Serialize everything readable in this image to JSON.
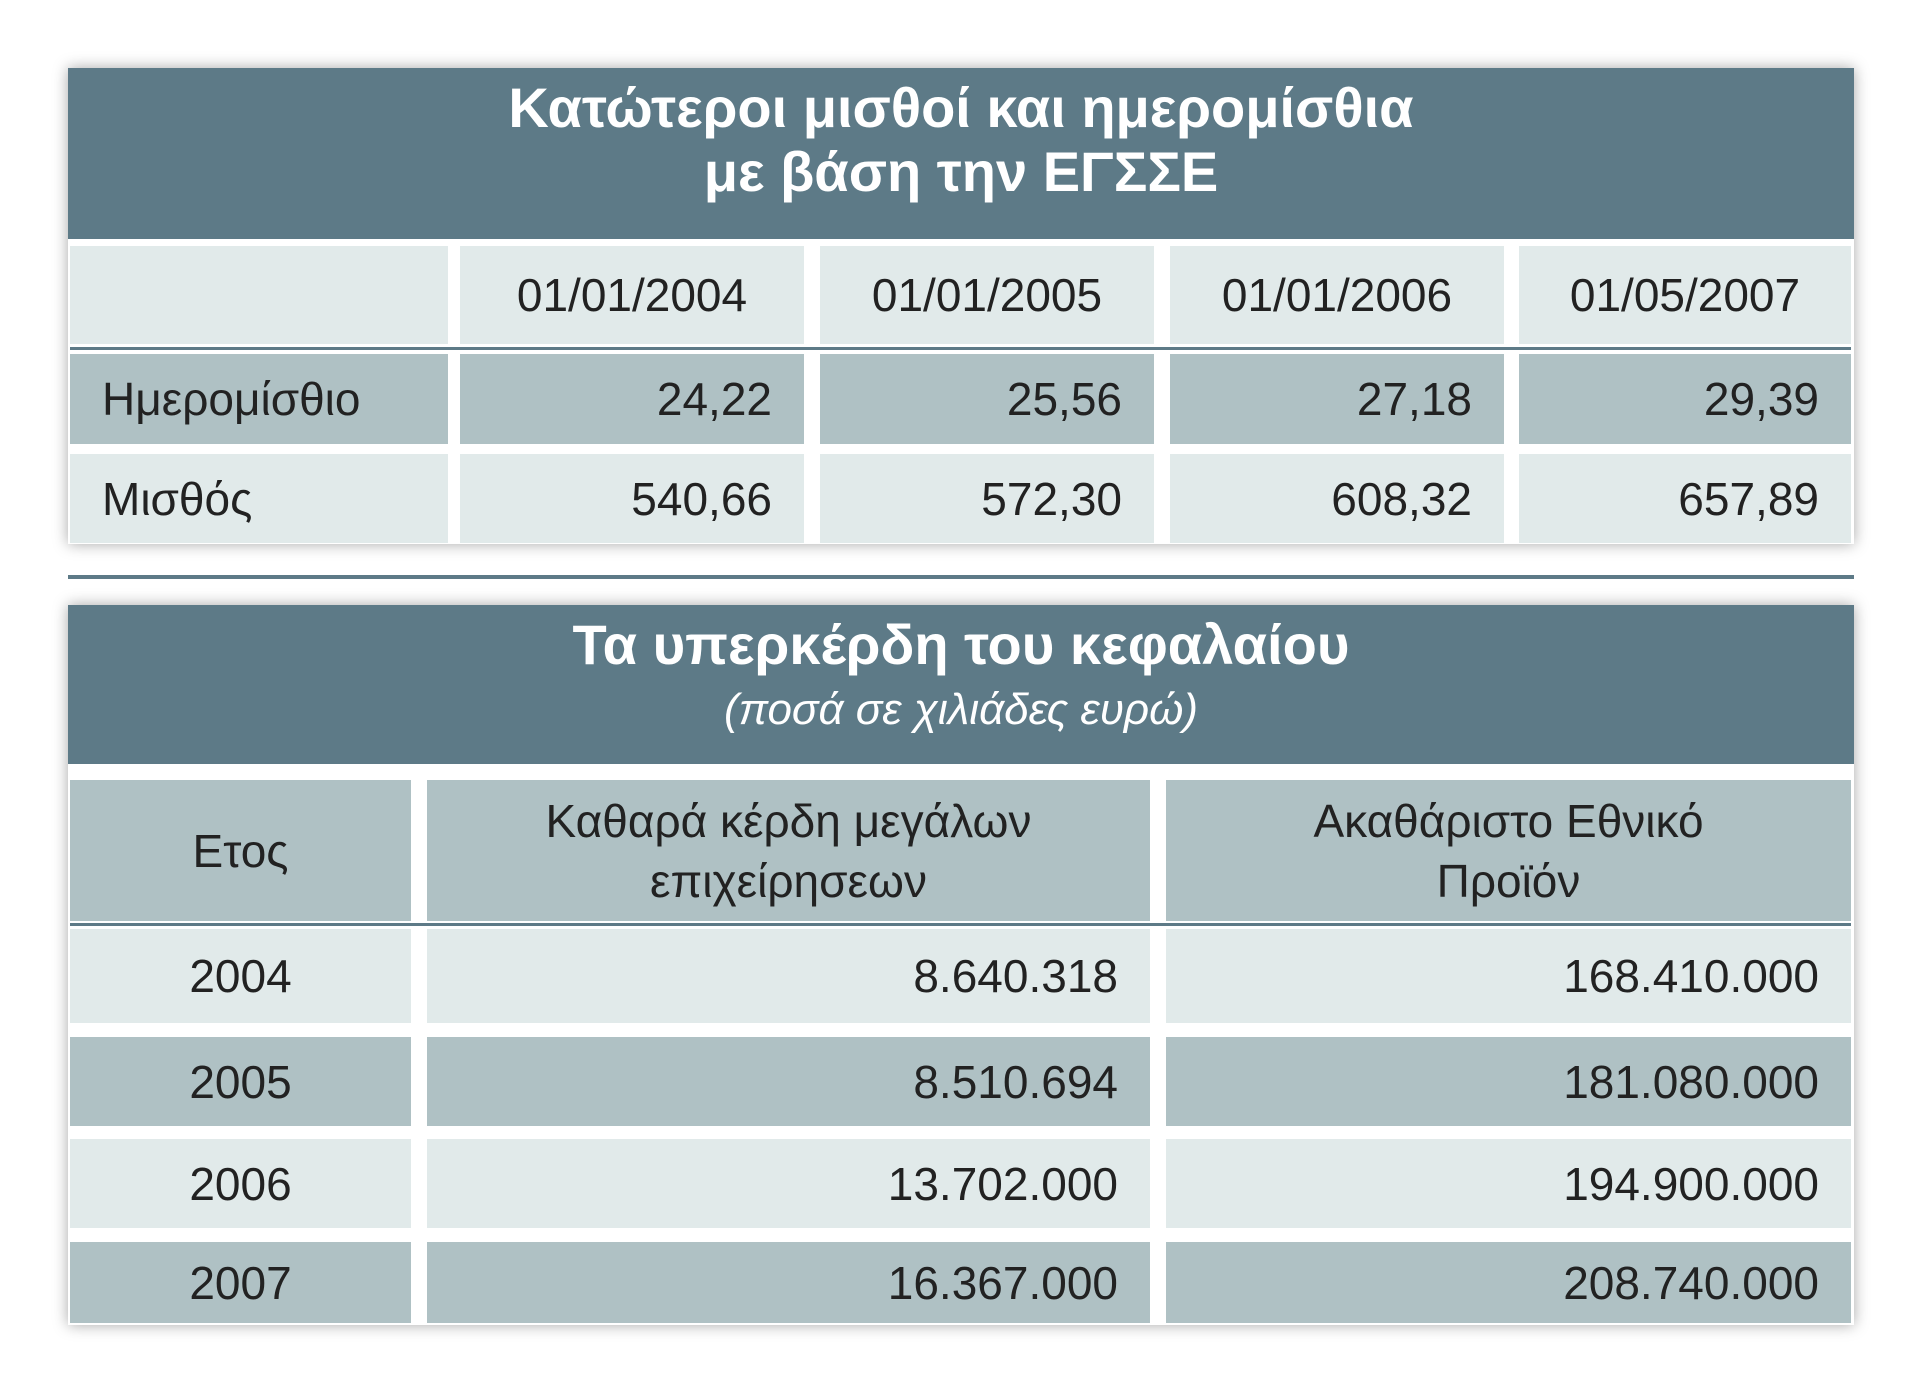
{
  "table1": {
    "title": [
      "Κατώτεροι μισθοί και ημερομίσθια",
      "με βάση την ΕΓΣΣΕ"
    ],
    "header": [
      "01/01/2004",
      "01/01/2005",
      "01/01/2006",
      "01/05/2007"
    ],
    "rows": [
      [
        "Ημερομίσθιο",
        "24,22",
        "25,56",
        "27,18",
        "29,39"
      ],
      [
        "Μισθός",
        "540,66",
        "572,30",
        "608,32",
        "657,89"
      ]
    ]
  },
  "table2": {
    "title": "Τα υπερκέρδη του κεφαλαίου",
    "subtitle": "(ποσά σε χιλιάδες ευρώ)",
    "header": [
      [
        "Ετος"
      ],
      [
        "Καθαρά κέρδη μεγάλων",
        "επιχείρησεων"
      ],
      [
        "Ακαθάριστο Εθνικό",
        "Προϊόν"
      ]
    ],
    "rows": [
      [
        "2004",
        "8.640.318",
        "168.410.000"
      ],
      [
        "2005",
        "8.510.694",
        "181.080.000"
      ],
      [
        "2006",
        "13.702.000",
        "194.900.000"
      ],
      [
        "2007",
        "16.367.000",
        "208.740.000"
      ]
    ]
  }
}
